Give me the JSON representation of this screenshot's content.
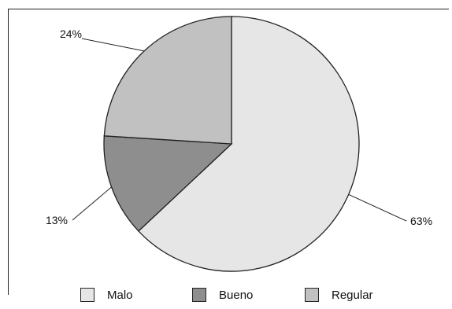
{
  "chart_data": {
    "type": "pie",
    "slices": [
      {
        "label": "Malo",
        "value": 63,
        "label_text": "63%",
        "color": "#e6e6e6"
      },
      {
        "label": "Bueno",
        "value": 13,
        "label_text": "13%",
        "color": "#8e8e8e"
      },
      {
        "label": "Regular",
        "value": 24,
        "label_text": "24%",
        "color": "#c1c1c1"
      }
    ],
    "start_angle_deg": 0,
    "direction": "clockwise",
    "legend_position": "bottom",
    "outline_color": "#222222"
  },
  "legend": {
    "items": [
      {
        "label": "Malo",
        "color": "#e6e6e6"
      },
      {
        "label": "Bueno",
        "color": "#8e8e8e"
      },
      {
        "label": "Regular",
        "color": "#c1c1c1"
      }
    ]
  }
}
